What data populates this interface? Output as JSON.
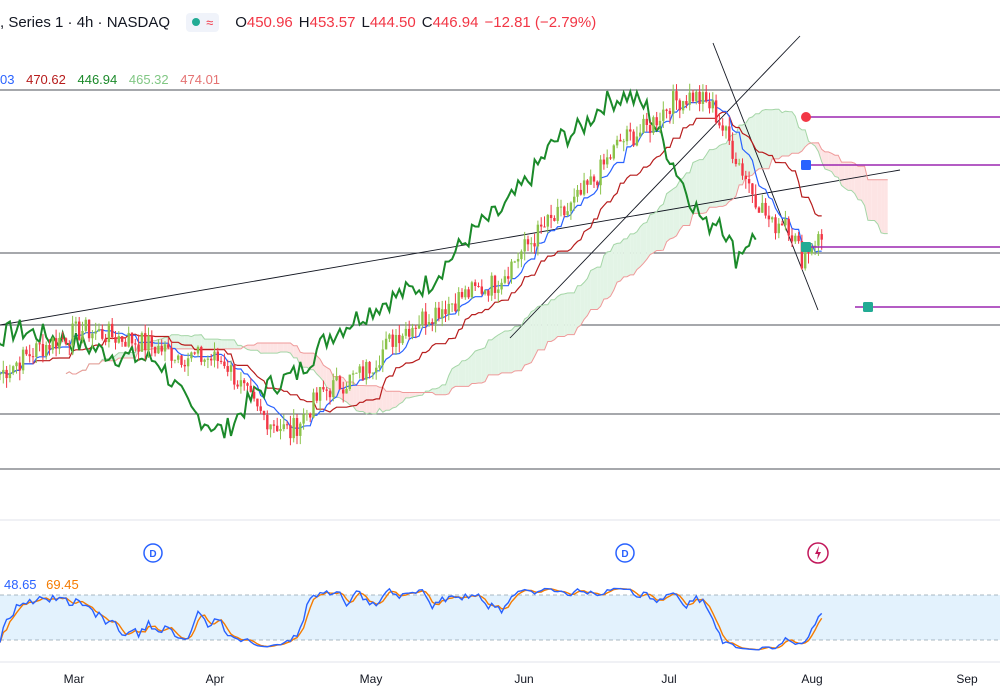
{
  "header": {
    "title": ", Series 1 · 4h · NASDAQ",
    "open_label": "O",
    "open": "450.96",
    "high_label": "H",
    "high": "453.57",
    "low_label": "L",
    "low": "444.50",
    "close_label": "C",
    "close": "446.94",
    "change": "−12.81 (−2.79%)"
  },
  "indicators": {
    "ichimoku_values": [
      "03",
      "470.62",
      "446.94",
      "465.32",
      "474.01"
    ],
    "ichimoku_colors": [
      "#2962ff",
      "#b71c1c",
      "#1b8a2a",
      "#81c784",
      "#e57373"
    ],
    "stoch_values": [
      "48.65",
      "69.45"
    ],
    "stoch_colors": [
      "#2962ff",
      "#f57c00"
    ]
  },
  "colors": {
    "up": "#22ab94",
    "down": "#f23645",
    "upbody": "#8bc34a",
    "conversion": "#2962ff",
    "base": "#b71c1c",
    "lagging": "#1b8a2a",
    "cloud_up": "#e3f4e6",
    "cloud_down": "#fde4e4"
  },
  "icons": {
    "dividend": "D",
    "earnings": "lightning-icon"
  },
  "chart_data": {
    "type": "candlestick",
    "x_ticks": [
      "Mar",
      "Apr",
      "May",
      "Jun",
      "Jul",
      "Aug",
      "Sep"
    ],
    "price_key_points": [
      {
        "x": "Feb 24",
        "close": 395
      },
      {
        "x": "Mar 10",
        "close": 410
      },
      {
        "x": "Apr 1",
        "close": 402
      },
      {
        "x": "Apr 19",
        "close": 371
      },
      {
        "x": "May 1",
        "close": 385
      },
      {
        "x": "May 15",
        "close": 418
      },
      {
        "x": "Jun 1",
        "close": 425
      },
      {
        "x": "Jun 20",
        "close": 460
      },
      {
        "x": "Jul 10",
        "close": 503
      },
      {
        "x": "Jul 24",
        "close": 455
      },
      {
        "x": "Aug 1",
        "close": 446.94
      }
    ],
    "last_bar": {
      "open": 450.96,
      "high": 453.57,
      "low": 444.5,
      "close": 446.94
    },
    "stochastic": {
      "k": 48.65,
      "d": 69.45,
      "bands": [
        20,
        80
      ]
    },
    "events": [
      {
        "type": "dividend",
        "label": "D",
        "x": "Mar 20"
      },
      {
        "type": "dividend",
        "label": "D",
        "x": "Jun 21"
      },
      {
        "type": "earnings",
        "label": "",
        "x": "Aug 1"
      }
    ]
  }
}
